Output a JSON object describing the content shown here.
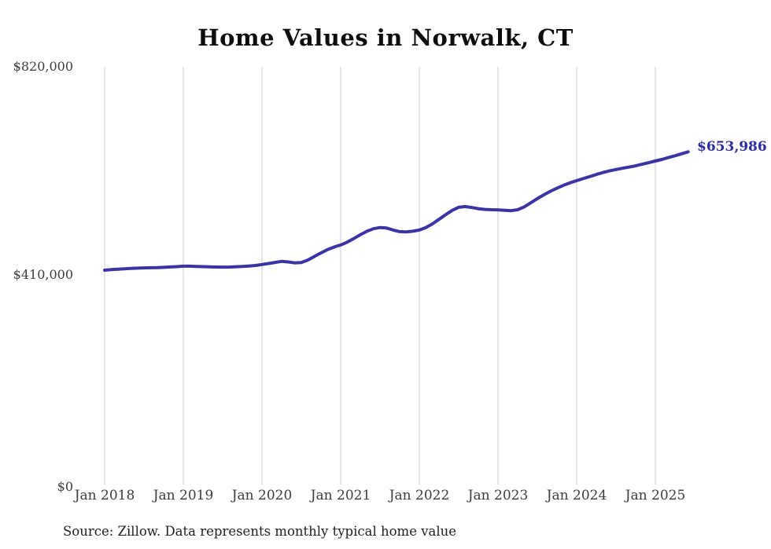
{
  "title": "Home Values in Norwalk, CT",
  "source_note": "Source: Zillow. Data represents monthly typical home value",
  "end_label": "$653,986",
  "colors": {
    "line": "#3a34a4",
    "end_label": "#2f2c9e",
    "grid": "#c9c9c9",
    "axis_text": "#3c3c3c",
    "title_text": "#0e0e0e"
  },
  "chart_data": {
    "type": "line",
    "title": "Home Values in Norwalk, CT",
    "xlabel": "",
    "ylabel": "",
    "ylim": [
      0,
      820000
    ],
    "y_tick_labels": [
      "$820,000",
      "$410,000",
      "$0"
    ],
    "y_tick_values": [
      820000,
      410000,
      0
    ],
    "x_tick_labels": [
      "Jan 2018",
      "Jan 2019",
      "Jan 2020",
      "Jan 2021",
      "Jan 2022",
      "Jan 2023",
      "Jan 2024",
      "Jan 2025"
    ],
    "x_start": "2018-01",
    "x_end": "2025-06",
    "frequency": "monthly",
    "grid": "vertical-only",
    "legend": "none",
    "end_value": 653986,
    "series": [
      {
        "name": "Typical home value",
        "values": [
          423000,
          424100,
          425000,
          425800,
          426500,
          427000,
          427500,
          427800,
          428000,
          428600,
          429300,
          430000,
          430800,
          430900,
          430400,
          429900,
          429400,
          429100,
          429000,
          429200,
          429700,
          430300,
          431100,
          432300,
          434000,
          436000,
          438200,
          440200,
          439100,
          437300,
          438100,
          442800,
          449800,
          456800,
          463200,
          468200,
          472300,
          477800,
          484800,
          492100,
          498900,
          503900,
          506200,
          505300,
          501400,
          498300,
          497900,
          499100,
          501300,
          506200,
          513400,
          522200,
          531200,
          539700,
          545800,
          547200,
          545400,
          543100,
          541700,
          541000,
          540700,
          539900,
          539200,
          541000,
          546600,
          554600,
          562600,
          570100,
          577100,
          583100,
          588700,
          593600,
          597800,
          601800,
          605800,
          609800,
          613500,
          616700,
          619500,
          621900,
          624200,
          626800,
          629800,
          632900,
          636000,
          639200,
          642800,
          646300,
          650200,
          653986
        ]
      }
    ]
  }
}
